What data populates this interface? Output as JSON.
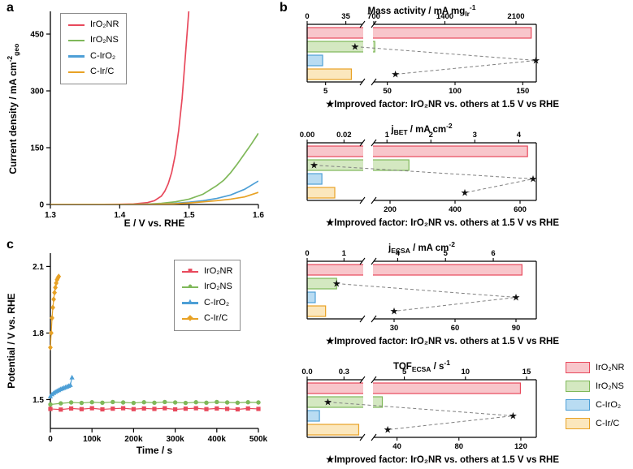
{
  "panels": {
    "a": {
      "label": "a",
      "ylabel_pre": "Current density / mA cm",
      "ylabel_sup": "-2",
      "ylabel_sub": "geo",
      "xlabel": "E / V vs. RHE"
    },
    "b": {
      "label": "b"
    },
    "c": {
      "label": "c",
      "ylabel": "Potential / V vs. RHE",
      "xlabel": "Time / s"
    }
  },
  "series_names": [
    "IrO₂NR",
    "IrO₂NS",
    "C-IrO₂",
    "C-Ir/C"
  ],
  "markers": [
    "■",
    "●",
    "▲",
    "◆"
  ],
  "colors": [
    {
      "line": "#e8495c",
      "fill": "#f8c6cb"
    },
    {
      "line": "#7fb859",
      "fill": "#d4e8c1"
    },
    {
      "line": "#4d9fd6",
      "fill": "#b9dcf2"
    },
    {
      "line": "#e8a225",
      "fill": "#fbe7bd"
    }
  ],
  "chart_data": [
    {
      "id": "lsv-polarization",
      "type": "line",
      "panel": "a",
      "xlabel": "E / V vs. RHE",
      "ylabel": "Current density / mA cm-2 (geo)",
      "xlim": [
        1.3,
        1.6
      ],
      "ylim": [
        0,
        510
      ],
      "xticks": [
        {
          "v": 1.3,
          "t": "1.3"
        },
        {
          "v": 1.4,
          "t": "1.4"
        },
        {
          "v": 1.5,
          "t": "1.5"
        },
        {
          "v": 1.6,
          "t": "1.6"
        }
      ],
      "yticks": [
        {
          "v": 0,
          "t": "0"
        },
        {
          "v": 150,
          "t": "150"
        },
        {
          "v": 300,
          "t": "300"
        },
        {
          "v": 450,
          "t": "450"
        }
      ],
      "series": [
        {
          "name": "IrO₂NR",
          "points": [
            [
              1.3,
              0
            ],
            [
              1.36,
              0
            ],
            [
              1.4,
              0.5
            ],
            [
              1.42,
              1.5
            ],
            [
              1.44,
              5
            ],
            [
              1.45,
              10
            ],
            [
              1.46,
              22
            ],
            [
              1.465,
              35
            ],
            [
              1.47,
              55
            ],
            [
              1.475,
              85
            ],
            [
              1.48,
              130
            ],
            [
              1.485,
              195
            ],
            [
              1.49,
              280
            ],
            [
              1.495,
              400
            ],
            [
              1.5,
              520
            ]
          ]
        },
        {
          "name": "IrO₂NS",
          "points": [
            [
              1.3,
              0
            ],
            [
              1.4,
              0
            ],
            [
              1.44,
              1
            ],
            [
              1.46,
              3
            ],
            [
              1.48,
              7
            ],
            [
              1.5,
              14
            ],
            [
              1.52,
              27
            ],
            [
              1.54,
              50
            ],
            [
              1.55,
              64
            ],
            [
              1.56,
              84
            ],
            [
              1.57,
              108
            ],
            [
              1.58,
              134
            ],
            [
              1.59,
              160
            ],
            [
              1.6,
              188
            ]
          ]
        },
        {
          "name": "C-IrO₂",
          "points": [
            [
              1.3,
              0
            ],
            [
              1.42,
              0
            ],
            [
              1.46,
              1
            ],
            [
              1.48,
              3
            ],
            [
              1.5,
              6
            ],
            [
              1.52,
              10
            ],
            [
              1.54,
              16
            ],
            [
              1.56,
              25
            ],
            [
              1.58,
              40
            ],
            [
              1.6,
              62
            ]
          ]
        },
        {
          "name": "C-Ir/C",
          "points": [
            [
              1.3,
              0
            ],
            [
              1.44,
              0
            ],
            [
              1.48,
              2
            ],
            [
              1.5,
              4
            ],
            [
              1.52,
              7
            ],
            [
              1.54,
              10
            ],
            [
              1.56,
              14
            ],
            [
              1.58,
              20
            ],
            [
              1.6,
              32
            ]
          ]
        }
      ]
    },
    {
      "id": "mass-activity",
      "type": "bar-broken",
      "title": {
        "pre": "Mass activity / mA mg",
        "sub": "Ir",
        "mid": "",
        "sup": "-1"
      },
      "top_axis": {
        "left": {
          "range": [
            0,
            50
          ],
          "ticks": [
            "0",
            "35"
          ]
        },
        "right": {
          "range": [
            700,
            2300
          ],
          "ticks": [
            "700",
            "1400",
            "2100"
          ]
        }
      },
      "bars": [
        {
          "name": "IrO₂NR",
          "value": 2250
        },
        {
          "name": "IrO₂NS",
          "value": 710
        },
        {
          "name": "C-IrO₂",
          "value": 14
        },
        {
          "name": "C-Ir/C",
          "value": 40
        }
      ],
      "bottom_axis": {
        "left": {
          "range": [
            0,
            15
          ],
          "ticks": [
            "5"
          ]
        },
        "right": {
          "range": [
            40,
            160
          ],
          "ticks": [
            "50",
            "100",
            "150"
          ]
        }
      },
      "stars": [
        {
          "vs": "IrO₂NS",
          "value": 13
        },
        {
          "vs": "C-IrO₂",
          "value": 160
        },
        {
          "vs": "C-Ir/C",
          "value": 56
        }
      ],
      "caption": "★Improved factor: IrO₂NR vs. others at 1.5 V vs RHE"
    },
    {
      "id": "j-bet",
      "type": "bar-broken",
      "title": {
        "pre": "j",
        "sub": "BET",
        "mid": " / mA cm",
        "sup": "-2"
      },
      "top_axis": {
        "left": {
          "range": [
            0,
            0.03
          ],
          "ticks": [
            "0.00",
            "0.02"
          ]
        },
        "right": {
          "range": [
            0.7,
            4.4
          ],
          "ticks": [
            "1",
            "2",
            "3",
            "4"
          ]
        }
      },
      "bars": [
        {
          "name": "IrO₂NR",
          "value": 4.2
        },
        {
          "name": "IrO₂NS",
          "value": 1.5
        },
        {
          "name": "C-IrO₂",
          "value": 0.008
        },
        {
          "name": "C-Ir/C",
          "value": 0.015
        }
      ],
      "bottom_axis": {
        "left": {
          "range": [
            0,
            40
          ],
          "ticks": []
        },
        "right": {
          "range": [
            150,
            650
          ],
          "ticks": [
            "200",
            "400",
            "600"
          ]
        }
      },
      "stars": [
        {
          "vs": "IrO₂NS",
          "value": 5
        },
        {
          "vs": "C-IrO₂",
          "value": 640
        },
        {
          "vs": "C-Ir/C",
          "value": 430
        }
      ],
      "caption": "★Improved factor: IrO₂NR vs. others at 1.5 V vs RHE"
    },
    {
      "id": "j-ecsa",
      "type": "bar-broken",
      "title": {
        "pre": "j",
        "sub": "ECSA",
        "mid": " / mA cm",
        "sup": "-2"
      },
      "top_axis": {
        "left": {
          "range": [
            0,
            1.5
          ],
          "ticks": [
            "0",
            "1"
          ]
        },
        "right": {
          "range": [
            3.5,
            6.9
          ],
          "ticks": [
            "4",
            "5",
            "6"
          ]
        }
      },
      "bars": [
        {
          "name": "IrO₂NR",
          "value": 6.6
        },
        {
          "name": "IrO₂NS",
          "value": 0.8
        },
        {
          "name": "C-IrO₂",
          "value": 0.22
        },
        {
          "name": "C-Ir/C",
          "value": 0.5
        }
      ],
      "bottom_axis": {
        "left": {
          "range": [
            0,
            15
          ],
          "ticks": []
        },
        "right": {
          "range": [
            20,
            100
          ],
          "ticks": [
            "30",
            "60",
            "90"
          ]
        }
      },
      "stars": [
        {
          "vs": "IrO₂NS",
          "value": 8
        },
        {
          "vs": "C-IrO₂",
          "value": 90
        },
        {
          "vs": "C-Ir/C",
          "value": 30
        }
      ],
      "caption": "★Improved factor: IrO₂NR vs. others at 1.5 V vs RHE"
    },
    {
      "id": "tof-ecsa",
      "type": "bar-broken",
      "title": {
        "pre": "TOF",
        "sub": "ECSA",
        "mid": " / s",
        "sup": "-1"
      },
      "top_axis": {
        "left": {
          "range": [
            0,
            0.45
          ],
          "ticks": [
            "0.0",
            "0.3"
          ]
        },
        "right": {
          "range": [
            2.5,
            15.8
          ],
          "ticks": [
            "5",
            "10",
            "15"
          ]
        }
      },
      "bars": [
        {
          "name": "IrO₂NR",
          "value": 14.5
        },
        {
          "name": "IrO₂NS",
          "value": 3.2
        },
        {
          "name": "C-IrO₂",
          "value": 0.1
        },
        {
          "name": "C-Ir/C",
          "value": 0.42
        }
      ],
      "bottom_axis": {
        "left": {
          "range": [
            0,
            12
          ],
          "ticks": []
        },
        "right": {
          "range": [
            25,
            130
          ],
          "ticks": [
            "40",
            "80",
            "120"
          ]
        }
      },
      "stars": [
        {
          "vs": "IrO₂NS",
          "value": 4.5
        },
        {
          "vs": "C-IrO₂",
          "value": 115
        },
        {
          "vs": "C-Ir/C",
          "value": 34
        }
      ],
      "caption": "★Improved factor: IrO₂NR vs. others at 1.5 V vs RHE"
    },
    {
      "id": "chronopotentiometry",
      "type": "line",
      "panel": "c",
      "xlabel": "Time / s",
      "ylabel": "Potential / V vs. RHE",
      "xlim": [
        0,
        500000
      ],
      "ylim": [
        1.37,
        2.16
      ],
      "xticks": [
        {
          "v": 0,
          "t": "0"
        },
        {
          "v": 100000,
          "t": "100k"
        },
        {
          "v": 200000,
          "t": "200k"
        },
        {
          "v": 300000,
          "t": "300k"
        },
        {
          "v": 400000,
          "t": "400k"
        },
        {
          "v": 500000,
          "t": "500k"
        }
      ],
      "yticks": [
        {
          "v": 1.5,
          "t": "1.5"
        },
        {
          "v": 1.8,
          "t": "1.8"
        },
        {
          "v": 2.1,
          "t": "2.1"
        }
      ],
      "series": [
        {
          "name": "IrO₂NR",
          "marker": "square",
          "points": [
            [
              0,
              1.458
            ],
            [
              25000,
              1.455
            ],
            [
              50000,
              1.46
            ],
            [
              75000,
              1.457
            ],
            [
              100000,
              1.461
            ],
            [
              125000,
              1.456
            ],
            [
              150000,
              1.459
            ],
            [
              175000,
              1.461
            ],
            [
              200000,
              1.457
            ],
            [
              225000,
              1.46
            ],
            [
              250000,
              1.458
            ],
            [
              275000,
              1.461
            ],
            [
              300000,
              1.456
            ],
            [
              325000,
              1.459
            ],
            [
              350000,
              1.461
            ],
            [
              375000,
              1.457
            ],
            [
              400000,
              1.46
            ],
            [
              425000,
              1.458
            ],
            [
              450000,
              1.456
            ],
            [
              475000,
              1.46
            ],
            [
              500000,
              1.458
            ]
          ]
        },
        {
          "name": "IrO₂NS",
          "marker": "circle",
          "points": [
            [
              0,
              1.478
            ],
            [
              25000,
              1.483
            ],
            [
              50000,
              1.487
            ],
            [
              75000,
              1.485
            ],
            [
              100000,
              1.488
            ],
            [
              125000,
              1.486
            ],
            [
              150000,
              1.489
            ],
            [
              175000,
              1.487
            ],
            [
              200000,
              1.485
            ],
            [
              225000,
              1.488
            ],
            [
              250000,
              1.486
            ],
            [
              275000,
              1.489
            ],
            [
              300000,
              1.487
            ],
            [
              325000,
              1.485
            ],
            [
              350000,
              1.488
            ],
            [
              375000,
              1.486
            ],
            [
              400000,
              1.489
            ],
            [
              425000,
              1.487
            ],
            [
              450000,
              1.486
            ],
            [
              475000,
              1.488
            ],
            [
              500000,
              1.487
            ]
          ]
        },
        {
          "name": "C-IrO₂",
          "marker": "triangle",
          "points": [
            [
              0,
              1.515
            ],
            [
              4000,
              1.524
            ],
            [
              8000,
              1.53
            ],
            [
              12000,
              1.535
            ],
            [
              16000,
              1.539
            ],
            [
              20000,
              1.543
            ],
            [
              24000,
              1.547
            ],
            [
              28000,
              1.55
            ],
            [
              32000,
              1.553
            ],
            [
              36000,
              1.556
            ],
            [
              40000,
              1.559
            ],
            [
              44000,
              1.562
            ],
            [
              48000,
              1.566
            ],
            [
              52000,
              1.6
            ]
          ]
        },
        {
          "name": "C-Ir/C",
          "marker": "diamond",
          "points": [
            [
              0,
              1.735
            ],
            [
              2000,
              1.8
            ],
            [
              4000,
              1.868
            ],
            [
              6000,
              1.915
            ],
            [
              8000,
              1.952
            ],
            [
              10000,
              1.982
            ],
            [
              12000,
              2.005
            ],
            [
              14000,
              2.025
            ],
            [
              16000,
              2.04
            ],
            [
              18000,
              2.048
            ],
            [
              20000,
              2.055
            ]
          ]
        }
      ]
    }
  ]
}
